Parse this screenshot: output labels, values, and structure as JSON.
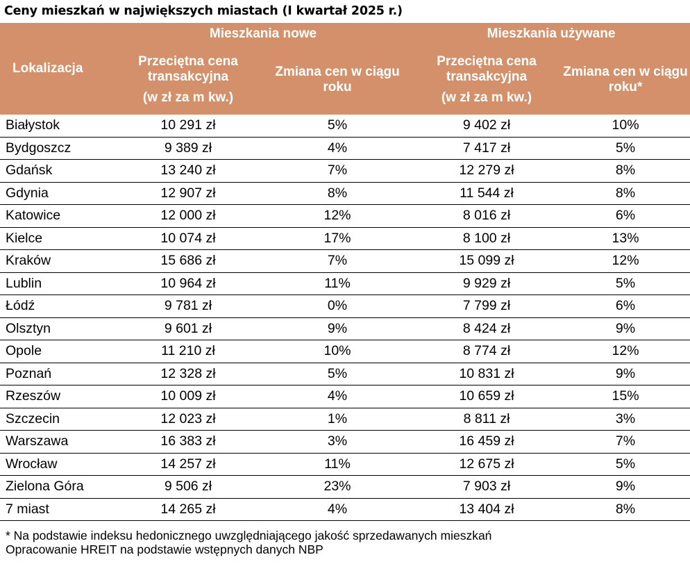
{
  "title": "Ceny mieszkań w największych miastach (I kwartał 2025 r.)",
  "header": {
    "location": "Lokalizacja",
    "group_new": "Mieszkania nowe",
    "group_used": "Mieszkania używane",
    "new_price": "Przeciętna cena transakcyjna",
    "new_price_unit": "(w zł za m kw.)",
    "new_change": "Zmiana cen w ciągu roku",
    "used_price": "Przeciętna cena transakcyjna",
    "used_price_unit": "(w zł za m kw.)",
    "used_change": "Zmiana cen w ciągu roku*"
  },
  "header_color": "#d4906a",
  "rows": [
    {
      "city": "Białystok",
      "new_price": "10 291 zł",
      "new_change": "5%",
      "used_price": "9 402 zł",
      "used_change": "10%"
    },
    {
      "city": "Bydgoszcz",
      "new_price": "9 389 zł",
      "new_change": "4%",
      "used_price": "7 417 zł",
      "used_change": "5%"
    },
    {
      "city": "Gdańsk",
      "new_price": "13 240 zł",
      "new_change": "7%",
      "used_price": "12 279 zł",
      "used_change": "8%"
    },
    {
      "city": "Gdynia",
      "new_price": "12 907 zł",
      "new_change": "8%",
      "used_price": "11 544 zł",
      "used_change": "8%"
    },
    {
      "city": "Katowice",
      "new_price": "12 000 zł",
      "new_change": "12%",
      "used_price": "8 016 zł",
      "used_change": "6%"
    },
    {
      "city": "Kielce",
      "new_price": "10 074 zł",
      "new_change": "17%",
      "used_price": "8 100 zł",
      "used_change": "13%"
    },
    {
      "city": "Kraków",
      "new_price": "15 686 zł",
      "new_change": "7%",
      "used_price": "15 099 zł",
      "used_change": "12%"
    },
    {
      "city": "Lublin",
      "new_price": "10 964 zł",
      "new_change": "11%",
      "used_price": "9 929 zł",
      "used_change": "5%"
    },
    {
      "city": "Łódź",
      "new_price": "9 781 zł",
      "new_change": "0%",
      "used_price": "7 799 zł",
      "used_change": "6%"
    },
    {
      "city": "Olsztyn",
      "new_price": "9 601 zł",
      "new_change": "9%",
      "used_price": "8 424 zł",
      "used_change": "9%"
    },
    {
      "city": "Opole",
      "new_price": "11 210 zł",
      "new_change": "10%",
      "used_price": "8 774 zł",
      "used_change": "12%"
    },
    {
      "city": "Poznań",
      "new_price": "12 328 zł",
      "new_change": "5%",
      "used_price": "10 831 zł",
      "used_change": "9%"
    },
    {
      "city": "Rzeszów",
      "new_price": "10 009 zł",
      "new_change": "4%",
      "used_price": "10 659 zł",
      "used_change": "15%"
    },
    {
      "city": "Szczecin",
      "new_price": "12 023 zł",
      "new_change": "1%",
      "used_price": "8 811 zł",
      "used_change": "3%"
    },
    {
      "city": "Warszawa",
      "new_price": "16 383 zł",
      "new_change": "3%",
      "used_price": "16 459 zł",
      "used_change": "7%"
    },
    {
      "city": "Wrocław",
      "new_price": "14 257 zł",
      "new_change": "11%",
      "used_price": "12 675 zł",
      "used_change": "5%"
    },
    {
      "city": "Zielona Góra",
      "new_price": "9 506 zł",
      "new_change": "23%",
      "used_price": "7 903 zł",
      "used_change": "9%"
    },
    {
      "city": "7 miast",
      "new_price": "14 265 zł",
      "new_change": "4%",
      "used_price": "13 404 zł",
      "used_change": "8%"
    }
  ],
  "footnotes": [
    "* Na podstawie indeksu hedonicznego uwzględniającego jakość sprzedawanych mieszkań",
    "Opracowanie HREIT na podstawie wstępnych danych NBP"
  ]
}
